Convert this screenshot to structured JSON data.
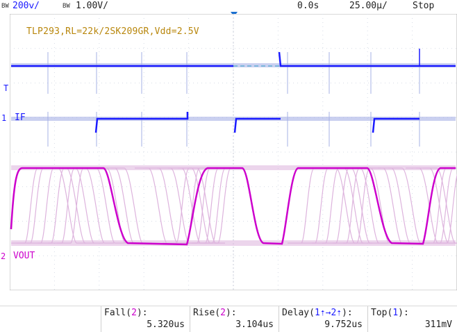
{
  "header": {
    "ch1_bw": "BW",
    "ch1_scale": "200ⅴ/",
    "ch2_bw": "BW",
    "ch2_scale": "1.00V/",
    "trigger_time": "0.0s",
    "timebase": "25.00µ/",
    "run_state": "Stop"
  },
  "annotation": "TLP293,RL=22k/2SK209GR,Vdd=2.5V",
  "channels": {
    "trigger_label": "T",
    "ch1_number": "1",
    "ch1_name": "IF",
    "ch2_number": "2",
    "ch2_name": "VOUT"
  },
  "measurements": [
    {
      "label_main": "Fall(",
      "label_ch": "2",
      "label_end": "):",
      "value": "5.320us"
    },
    {
      "label_main": "Rise(",
      "label_ch": "2",
      "label_end": "):",
      "value": "3.104us"
    },
    {
      "label_main": "Delay(",
      "label_ch": "1⇡→2⇡",
      "label_end": "):",
      "value": "9.752us"
    },
    {
      "label_main": "Top(",
      "label_ch": "1",
      "label_end": "):",
      "value": "311mV"
    }
  ],
  "colors": {
    "ch1": "#1a1aff",
    "ch1_persist": "#a6b0e6",
    "ch2": "#cc00cc",
    "ch2_persist": "#ddb3dd",
    "grid": "#d6dbe6",
    "annotation": "#b8860b"
  }
}
